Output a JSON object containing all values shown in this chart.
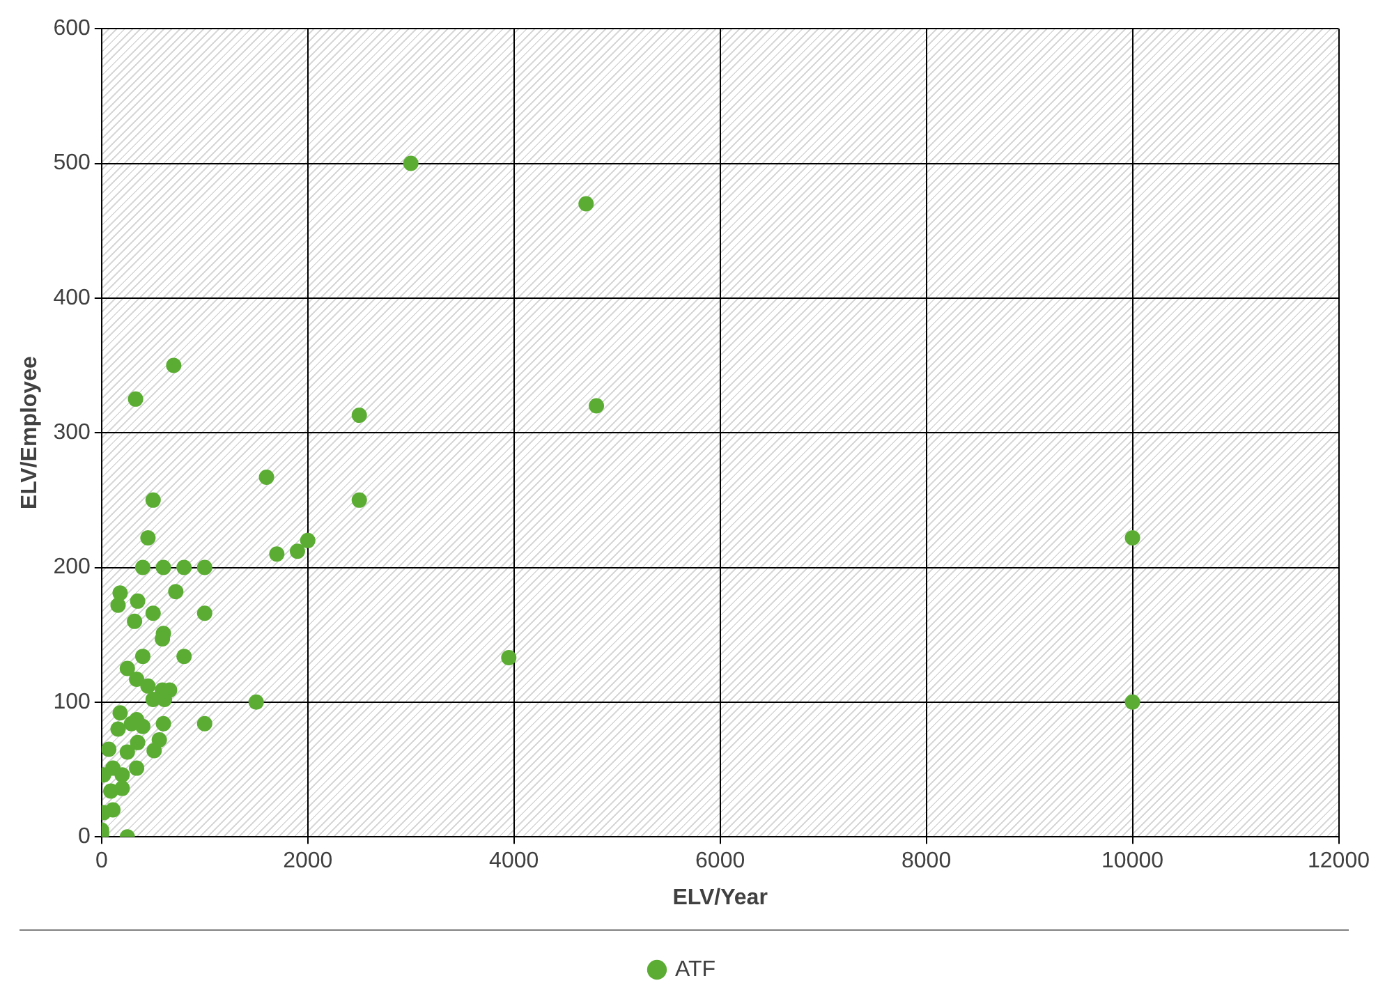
{
  "chart_data": {
    "type": "scatter",
    "xlabel": "ELV/Year",
    "ylabel": "ELV/Employee",
    "xlim": [
      0,
      12000
    ],
    "xticks": [
      0,
      2000,
      4000,
      6000,
      8000,
      10000,
      12000
    ],
    "ylim": [
      0,
      600
    ],
    "yticks": [
      0,
      100,
      200,
      300,
      400,
      500,
      600
    ],
    "grid": true,
    "legend": "bottom",
    "marker": "circle",
    "series": [
      {
        "name": "ATF",
        "color": "#5aad32",
        "x": [
          3000,
          4700,
          4800,
          2500,
          2500,
          1600,
          1700,
          1900,
          2000,
          3950,
          1500,
          10000,
          10000,
          700,
          330,
          500,
          450,
          400,
          600,
          800,
          1000,
          180,
          160,
          350,
          720,
          320,
          500,
          1000,
          600,
          590,
          400,
          800,
          250,
          340,
          450,
          590,
          660,
          500,
          610,
          180,
          160,
          340,
          400,
          290,
          600,
          1000,
          350,
          560,
          510,
          250,
          70,
          20,
          110,
          200,
          340,
          90,
          200,
          20,
          110,
          0,
          250,
          0
        ],
        "values": [
          500,
          470,
          320,
          313,
          250,
          267,
          210,
          212,
          220,
          133,
          100,
          222,
          100,
          350,
          325,
          250,
          222,
          200,
          200,
          200,
          200,
          181,
          172,
          175,
          182,
          160,
          166,
          166,
          151,
          147,
          134,
          134,
          125,
          117,
          112,
          109,
          109,
          102,
          102,
          92,
          80,
          87,
          82,
          84,
          84,
          84,
          70,
          72,
          64,
          63,
          65,
          46,
          51,
          46,
          51,
          34,
          36,
          18,
          20,
          5,
          0,
          2
        ]
      }
    ]
  }
}
